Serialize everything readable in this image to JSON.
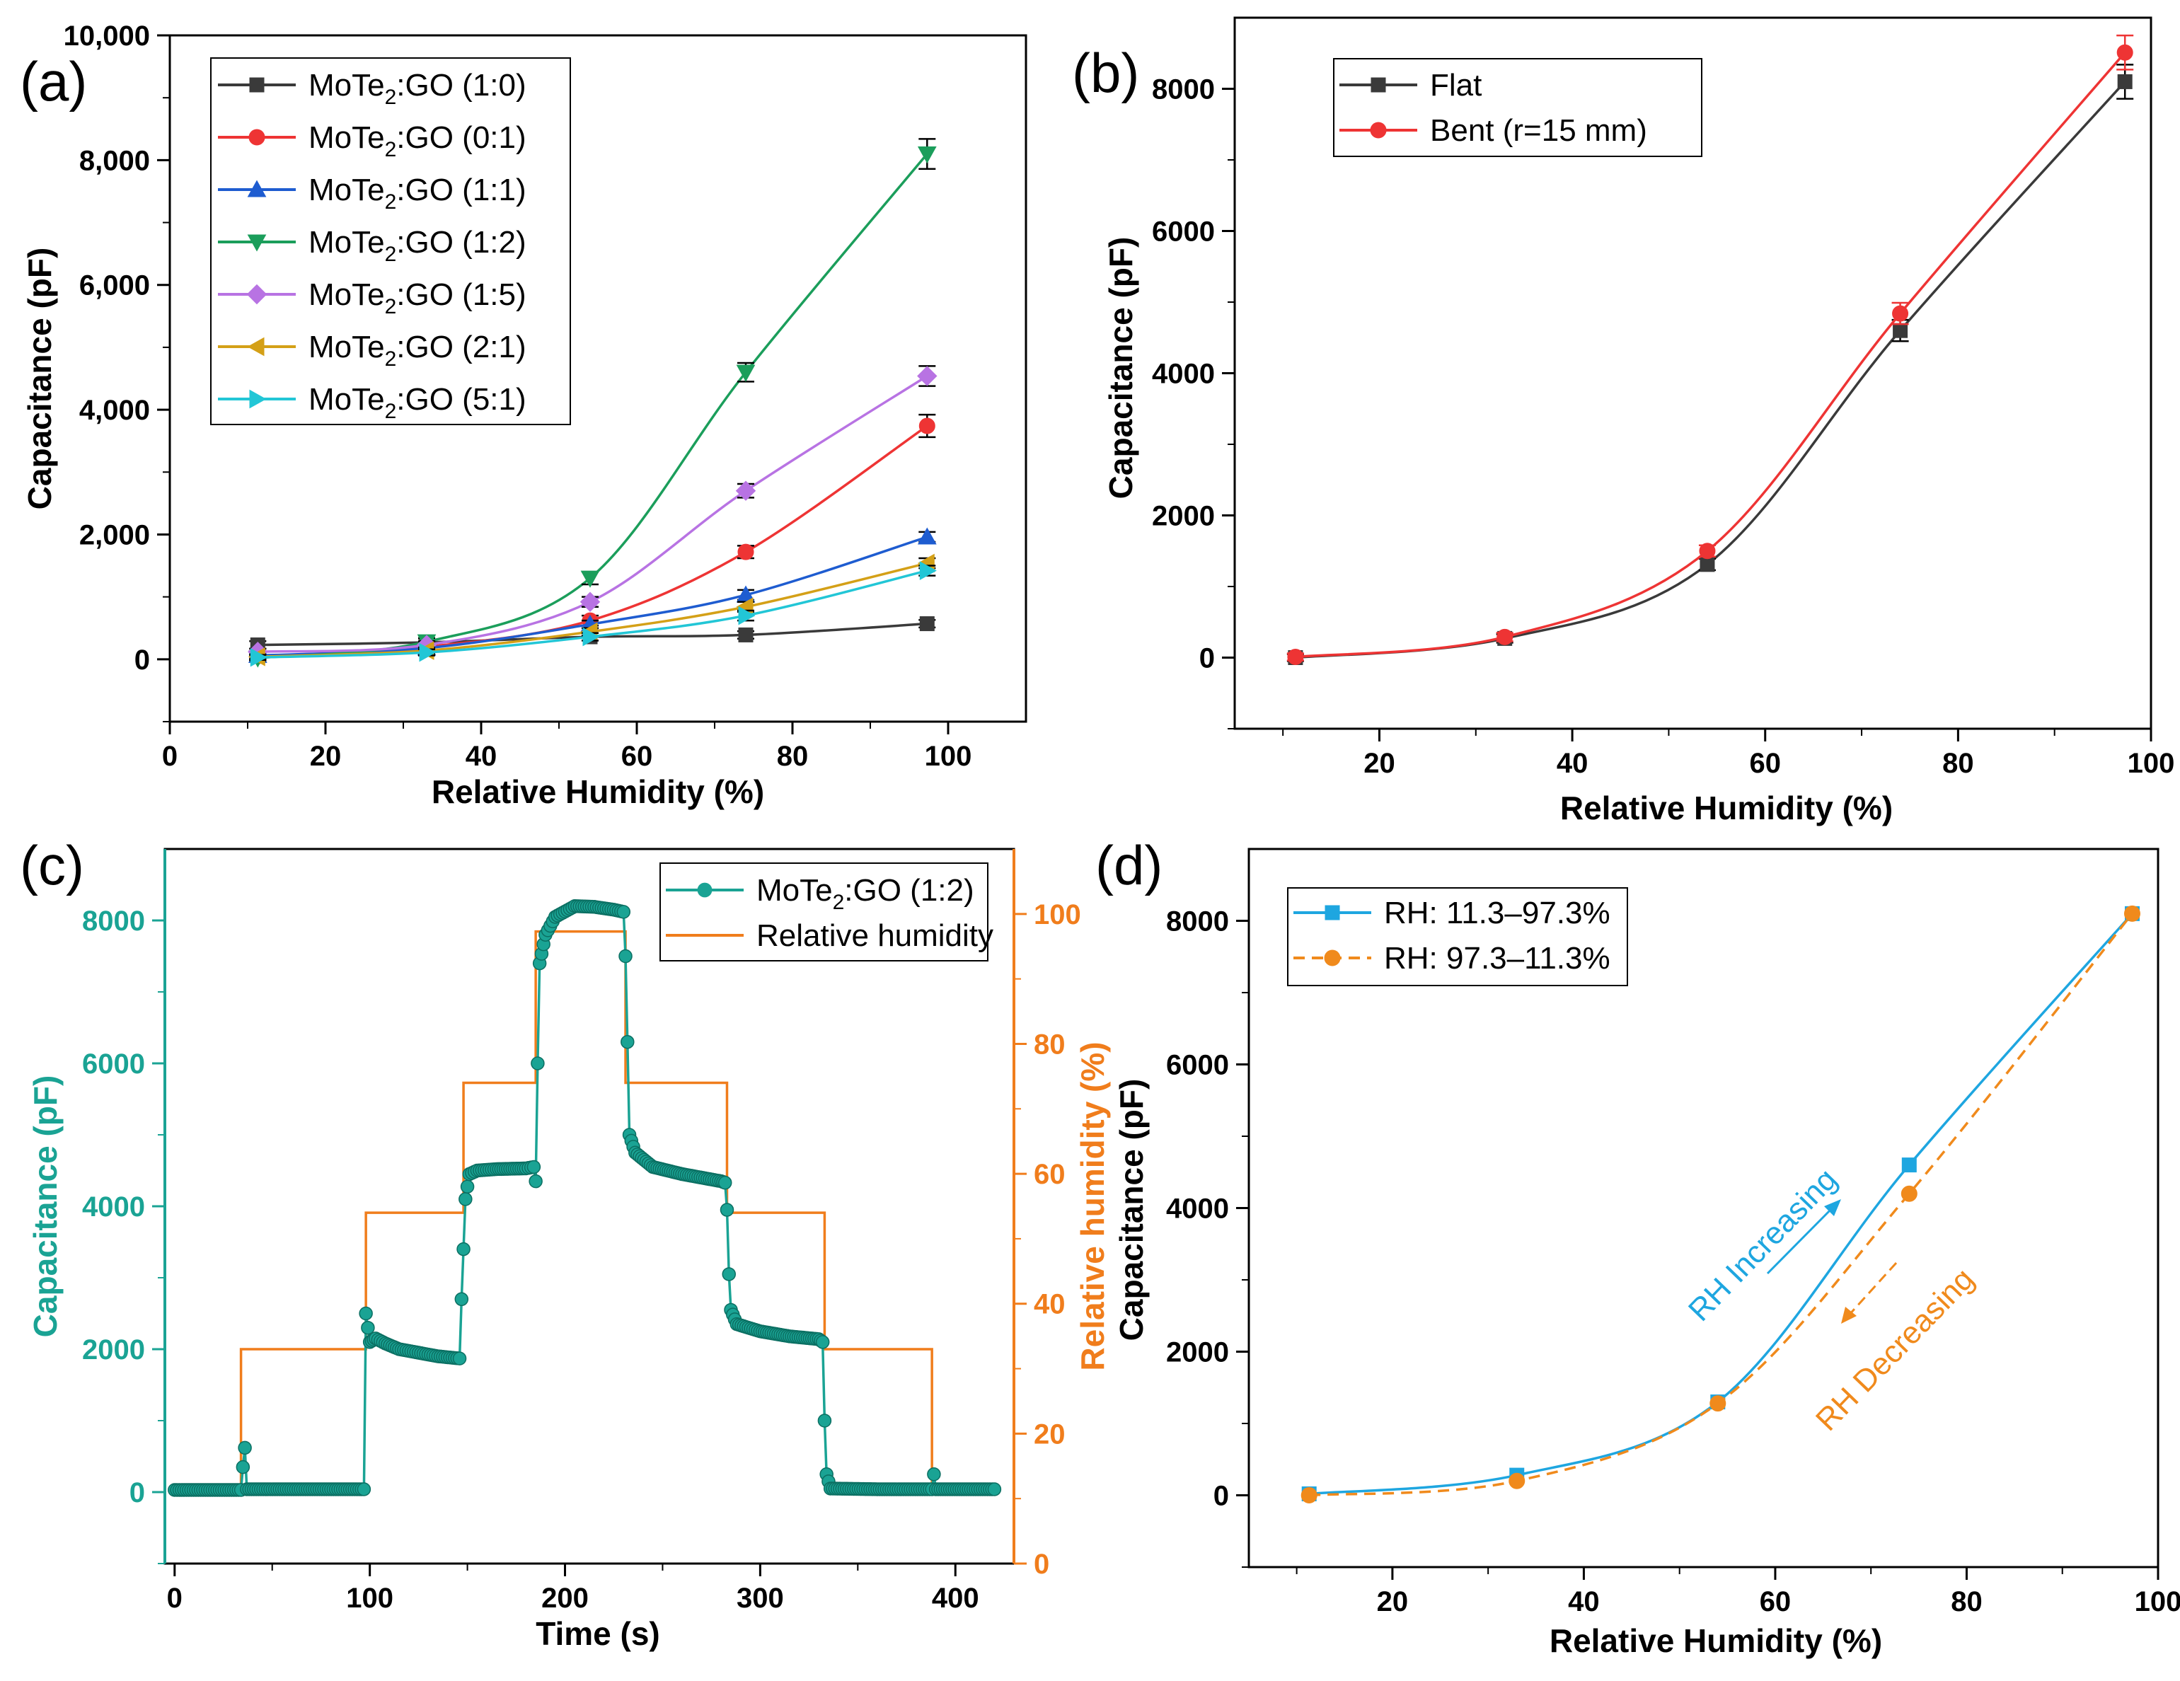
{
  "chart_data": [
    {
      "panel": "(a)",
      "type": "line",
      "xlabel": "Relative Humidity (%)",
      "ylabel": "Capacitance (pF)",
      "xlim": [
        0,
        110
      ],
      "ylim": [
        -1000,
        10000
      ],
      "xticks": [
        0,
        20,
        40,
        60,
        80,
        100
      ],
      "yticks": [
        0,
        2000,
        4000,
        6000,
        8000,
        10000
      ],
      "ytick_labels": [
        "0",
        "2,000",
        "4,000",
        "6,000",
        "8,000",
        "10,000"
      ],
      "legend_position": "top-left",
      "x": [
        11.3,
        33,
        54,
        74,
        97.3
      ],
      "series": [
        {
          "name": "MoTe2:GO (1:0)",
          "label_main": "MoTe",
          "label_sub": "2",
          "label_rest": ":GO (1:0)",
          "color": "#3a3a3a",
          "marker": "square",
          "values": [
            230,
            270,
            360,
            390,
            570
          ],
          "errors": [
            60,
            60,
            60,
            60,
            60
          ]
        },
        {
          "name": "MoTe2:GO (0:1)",
          "label_main": "MoTe",
          "label_sub": "2",
          "label_rest": ":GO (0:1)",
          "color": "#ee3434",
          "marker": "circle",
          "values": [
            50,
            200,
            620,
            1720,
            3740
          ],
          "errors": [
            60,
            60,
            80,
            100,
            180
          ]
        },
        {
          "name": "MoTe2:GO (1:1)",
          "label_main": "MoTe",
          "label_sub": "2",
          "label_rest": ":GO (1:1)",
          "color": "#1e5cd0",
          "marker": "triangle-up",
          "values": [
            60,
            180,
            560,
            1030,
            1960
          ],
          "errors": [
            50,
            50,
            60,
            80,
            80
          ]
        },
        {
          "name": "MoTe2:GO (1:2)",
          "label_main": "MoTe",
          "label_sub": "2",
          "label_rest": ":GO (1:2)",
          "color": "#1b9e5b",
          "marker": "triangle-down",
          "values": [
            20,
            280,
            1300,
            4600,
            8100
          ],
          "errors": [
            40,
            60,
            100,
            150,
            240
          ]
        },
        {
          "name": "MoTe2:GO (1:5)",
          "label_main": "MoTe",
          "label_sub": "2",
          "label_rest": ":GO (1:5)",
          "color": "#b873e3",
          "marker": "diamond",
          "values": [
            120,
            230,
            920,
            2700,
            4540
          ],
          "errors": [
            50,
            60,
            80,
            110,
            160
          ]
        },
        {
          "name": "MoTe2:GO (2:1)",
          "label_main": "MoTe",
          "label_sub": "2",
          "label_rest": ":GO (2:1)",
          "color": "#d4a017",
          "marker": "triangle-left",
          "values": [
            40,
            140,
            440,
            840,
            1540
          ],
          "errors": [
            40,
            50,
            60,
            80,
            80
          ]
        },
        {
          "name": "MoTe2:GO (5:1)",
          "label_main": "MoTe",
          "label_sub": "2",
          "label_rest": ":GO (5:1)",
          "color": "#22c6d6",
          "marker": "triangle-right",
          "values": [
            30,
            110,
            360,
            700,
            1420
          ],
          "errors": [
            40,
            50,
            60,
            80,
            80
          ]
        }
      ]
    },
    {
      "panel": "(b)",
      "type": "line",
      "xlabel": "Relative Humidity (%)",
      "ylabel": "Capacitance (pF)",
      "xlim": [
        5,
        100
      ],
      "ylim": [
        -1000,
        9000
      ],
      "xticks": [
        20,
        40,
        60,
        80,
        100
      ],
      "yticks": [
        0,
        2000,
        4000,
        6000,
        8000
      ],
      "ytick_labels": [
        "0",
        "2000",
        "4000",
        "6000",
        "8000"
      ],
      "legend_position": "top-left",
      "x": [
        11.3,
        33,
        54,
        74,
        97.3
      ],
      "series": [
        {
          "name": "Flat",
          "color": "#3a3a3a",
          "marker": "square",
          "values": [
            0,
            270,
            1310,
            4600,
            8100
          ],
          "errors": [
            50,
            60,
            80,
            150,
            240
          ]
        },
        {
          "name": "Bent (r=15 mm)",
          "color": "#ee3434",
          "marker": "circle",
          "values": [
            10,
            290,
            1500,
            4840,
            8510
          ],
          "errors": [
            50,
            60,
            80,
            150,
            240
          ]
        }
      ]
    },
    {
      "panel": "(c)",
      "type": "line",
      "xlabel": "Time (s)",
      "ylabel": "Capacitance (pF)",
      "y2label": "Relative humidity (%)",
      "xlim": [
        -5,
        430
      ],
      "ylim": [
        -1000,
        9000
      ],
      "y2lim": [
        0,
        110
      ],
      "xticks": [
        0,
        100,
        200,
        300,
        400
      ],
      "yticks": [
        0,
        2000,
        4000,
        6000,
        8000
      ],
      "ytick_labels": [
        "0",
        "2000",
        "4000",
        "6000",
        "8000"
      ],
      "y2ticks": [
        0,
        20,
        40,
        60,
        80,
        100
      ],
      "legend_position": "top-right",
      "capacitance": {
        "name": "MoTe2:GO (1:2)",
        "label_main": "MoTe",
        "label_sub": "2",
        "label_rest": ":GO (1:2)",
        "color": "#1aa394",
        "points": [
          [
            0,
            30
          ],
          [
            34,
            30
          ],
          [
            35,
            350
          ],
          [
            36,
            620
          ],
          [
            37,
            40
          ],
          [
            97,
            40
          ],
          [
            98,
            2500
          ],
          [
            100,
            2100
          ],
          [
            103,
            2150
          ],
          [
            108,
            2080
          ],
          [
            115,
            2000
          ],
          [
            125,
            1950
          ],
          [
            135,
            1900
          ],
          [
            146,
            1870
          ],
          [
            147,
            2700
          ],
          [
            148,
            3400
          ],
          [
            149,
            4100
          ],
          [
            151,
            4450
          ],
          [
            155,
            4500
          ],
          [
            165,
            4520
          ],
          [
            180,
            4530
          ],
          [
            184,
            4550
          ],
          [
            185,
            4350
          ],
          [
            186,
            6000
          ],
          [
            187,
            7400
          ],
          [
            190,
            7800
          ],
          [
            195,
            8050
          ],
          [
            205,
            8200
          ],
          [
            215,
            8190
          ],
          [
            225,
            8150
          ],
          [
            230,
            8120
          ],
          [
            231,
            7500
          ],
          [
            232,
            6300
          ],
          [
            233,
            5000
          ],
          [
            236,
            4750
          ],
          [
            245,
            4550
          ],
          [
            260,
            4450
          ],
          [
            280,
            4350
          ],
          [
            282,
            4330
          ],
          [
            283,
            3950
          ],
          [
            284,
            3050
          ],
          [
            285,
            2550
          ],
          [
            288,
            2350
          ],
          [
            300,
            2250
          ],
          [
            315,
            2180
          ],
          [
            330,
            2140
          ],
          [
            332,
            2100
          ],
          [
            333,
            1000
          ],
          [
            334,
            250
          ],
          [
            336,
            50
          ],
          [
            360,
            40
          ],
          [
            388,
            40
          ],
          [
            389,
            250
          ],
          [
            390,
            40
          ],
          [
            420,
            40
          ]
        ]
      },
      "humidity": {
        "name": "Relative humidity",
        "color": "#f07d1c",
        "steps": [
          [
            0,
            11.3
          ],
          [
            34,
            11.3
          ],
          [
            34,
            33
          ],
          [
            98,
            33
          ],
          [
            98,
            54
          ],
          [
            148,
            54
          ],
          [
            148,
            74
          ],
          [
            185,
            74
          ],
          [
            185,
            97.3
          ],
          [
            231,
            97.3
          ],
          [
            231,
            74
          ],
          [
            283,
            74
          ],
          [
            283,
            54
          ],
          [
            333,
            54
          ],
          [
            333,
            33
          ],
          [
            388,
            33
          ],
          [
            388,
            11.3
          ],
          [
            420,
            11.3
          ]
        ]
      }
    },
    {
      "panel": "(d)",
      "type": "line",
      "xlabel": "Relative Humidity (%)",
      "ylabel": "Capacitance (pF)",
      "xlim": [
        5,
        100
      ],
      "ylim": [
        -1000,
        9000
      ],
      "xticks": [
        20,
        40,
        60,
        80,
        100
      ],
      "yticks": [
        0,
        2000,
        4000,
        6000,
        8000
      ],
      "ytick_labels": [
        "0",
        "2000",
        "4000",
        "6000",
        "8000"
      ],
      "legend_position": "top-left",
      "x": [
        11.3,
        33,
        54,
        74,
        97.3
      ],
      "series": [
        {
          "name": "RH: 11.3–97.3%",
          "color": "#1ea6e0",
          "marker": "square",
          "dashed": false,
          "values": [
            20,
            280,
            1300,
            4600,
            8100
          ]
        },
        {
          "name": "RH: 97.3–11.3%",
          "color": "#f08a1c",
          "marker": "circle",
          "dashed": true,
          "values": [
            0,
            200,
            1280,
            4200,
            8100
          ]
        }
      ],
      "annotations": [
        "RH Increasing",
        "RH Decreasing"
      ]
    }
  ]
}
